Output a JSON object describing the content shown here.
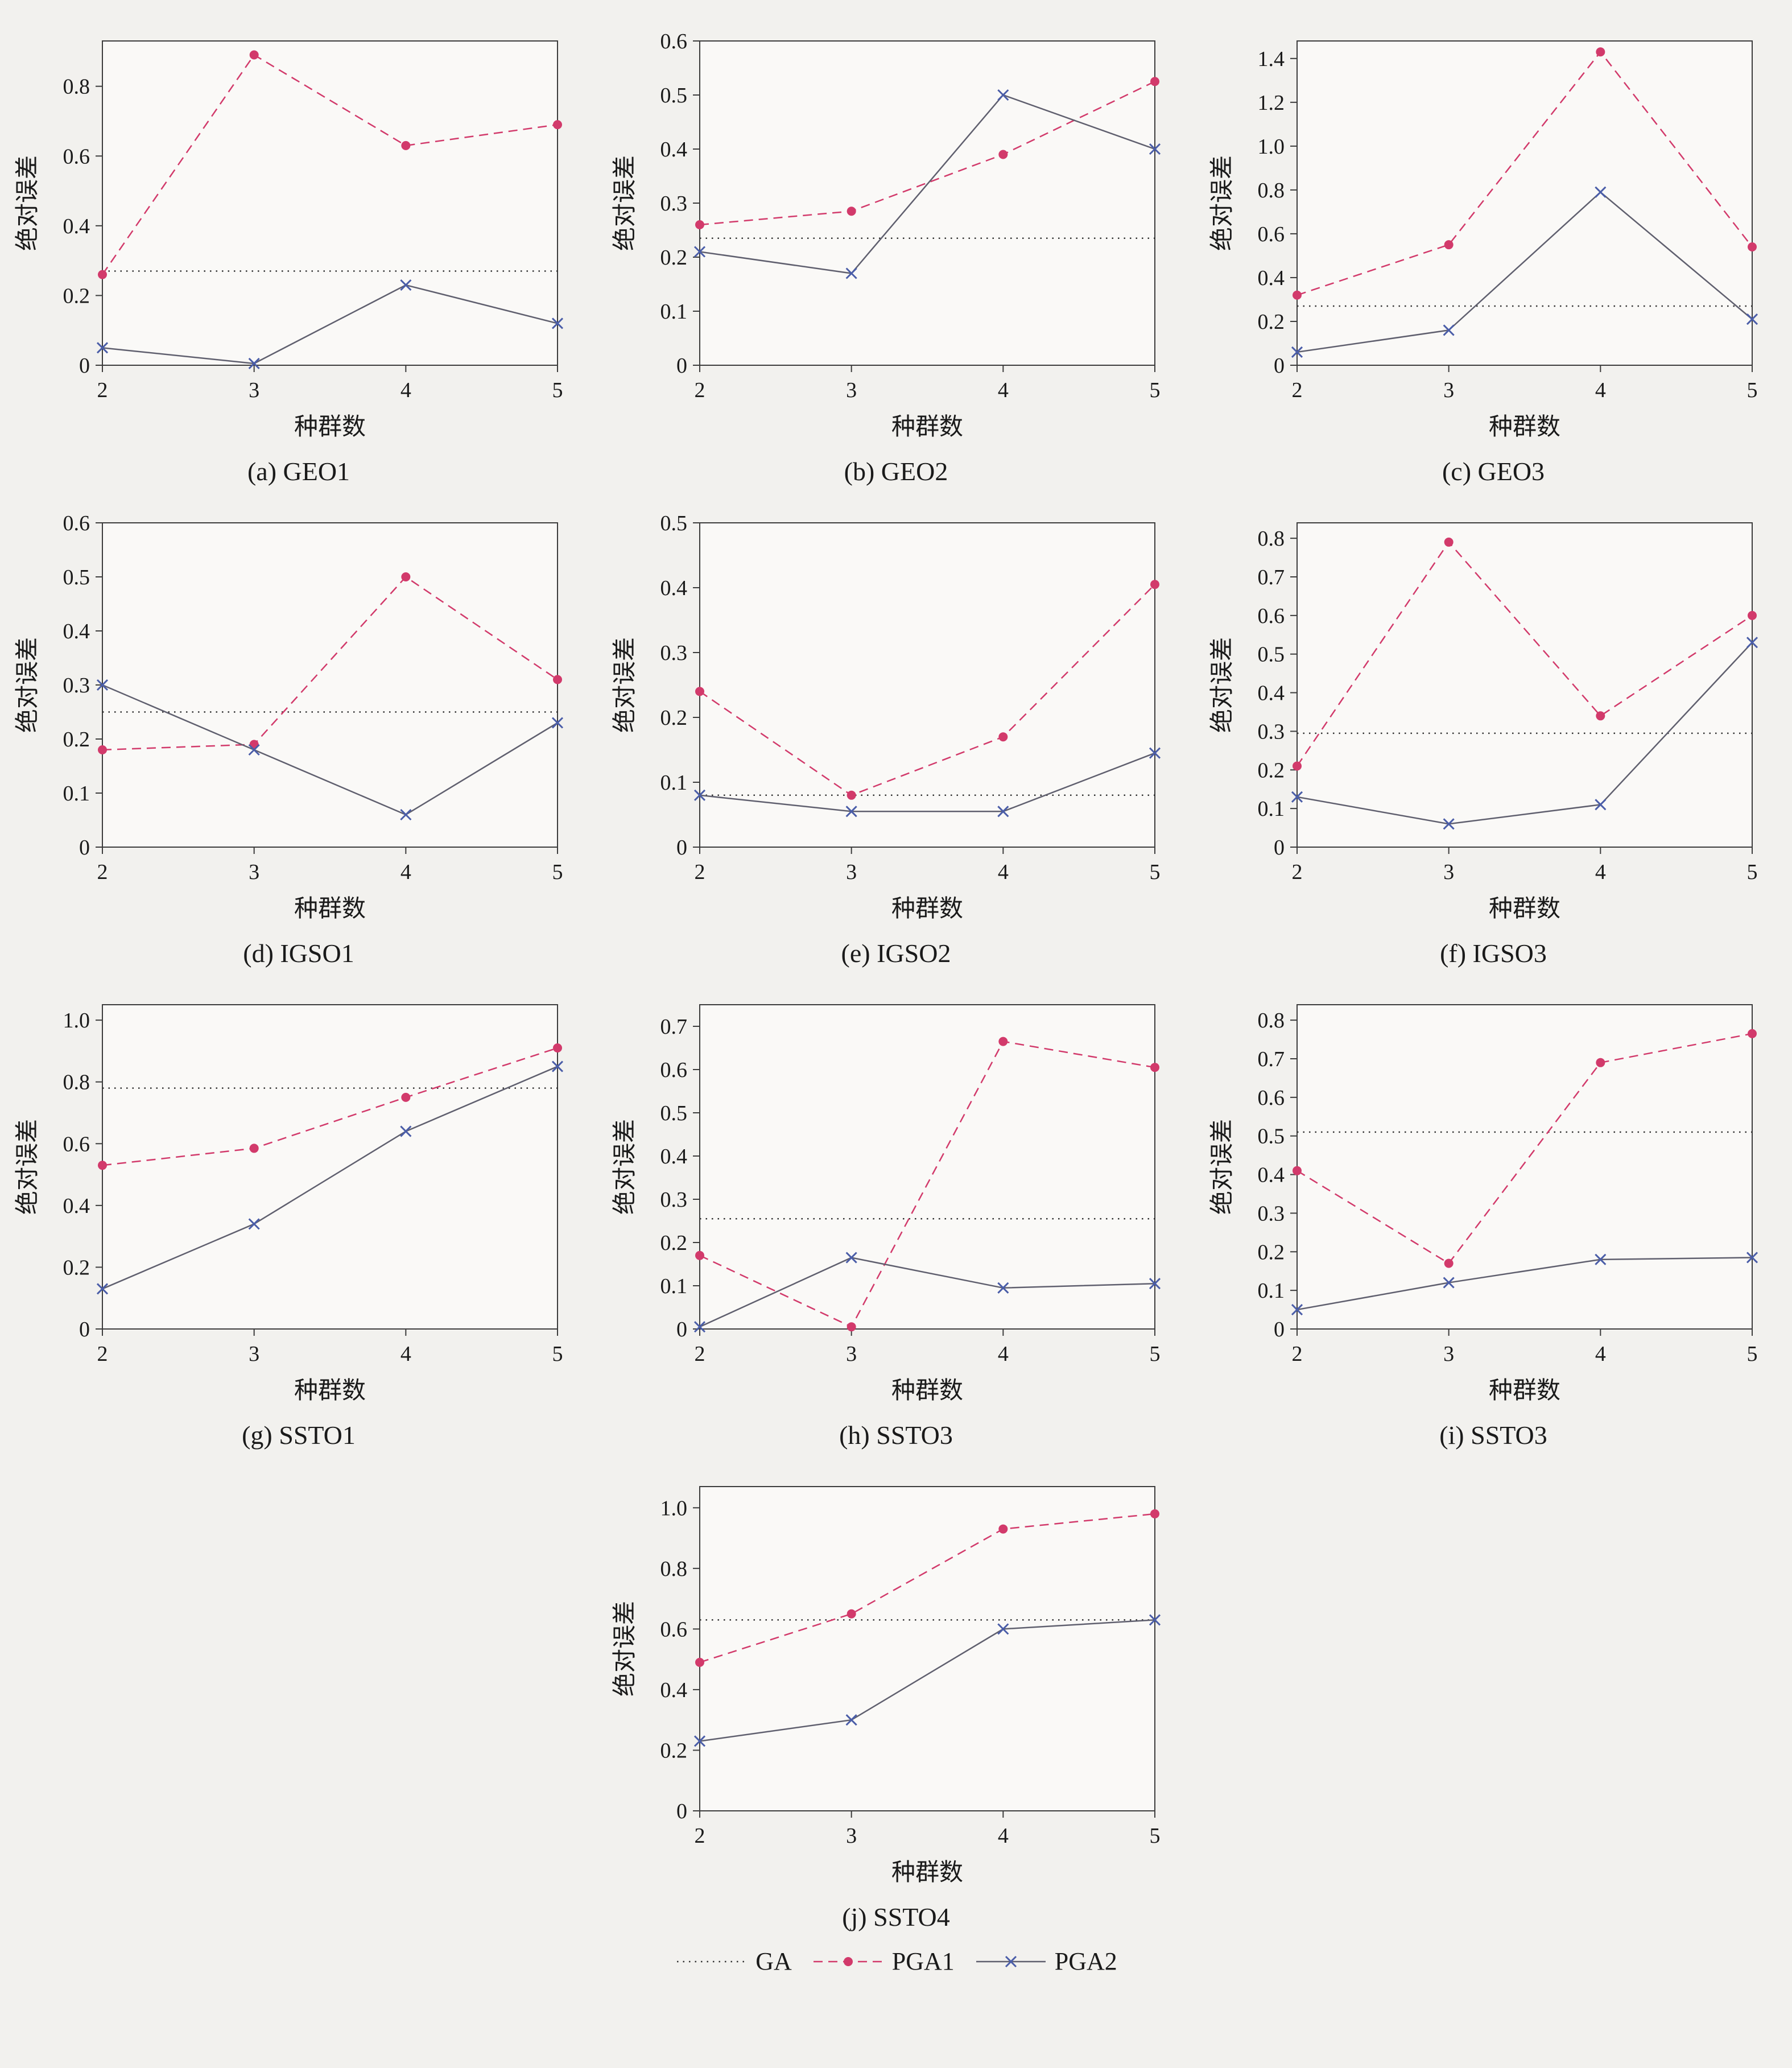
{
  "figure": {
    "background": "#f2f1ee",
    "plot_fill": "#faf9f7",
    "frame_color": "#3c3c3c",
    "xlabel": "种群数",
    "ylabel": "绝对误差",
    "x_ticks": [
      "2",
      "3",
      "4",
      "5"
    ],
    "legend_position": "bottom-center",
    "legend": [
      {
        "name": "GA",
        "style": "dotted",
        "color": "#333333"
      },
      {
        "name": "PGA1",
        "style": "dashed-circle",
        "color": "#d23a6b"
      },
      {
        "name": "PGA2",
        "style": "solid-x",
        "color": "#5f5f6e",
        "marker_color": "#4a5da8"
      }
    ]
  },
  "chart_data": [
    {
      "type": "line",
      "caption": "(a) GEO1",
      "xlabel": "种群数",
      "ylabel": "绝对误差",
      "x": [
        2,
        3,
        4,
        5
      ],
      "ylim": [
        0,
        0.93
      ],
      "yticks": [
        "0",
        "0.2",
        "0.4",
        "0.6",
        "0.8"
      ],
      "series": [
        {
          "name": "GA",
          "values": [
            0.27,
            0.27,
            0.27,
            0.27
          ]
        },
        {
          "name": "PGA1",
          "values": [
            0.26,
            0.89,
            0.63,
            0.69
          ]
        },
        {
          "name": "PGA2",
          "values": [
            0.05,
            0.005,
            0.23,
            0.12
          ]
        }
      ]
    },
    {
      "type": "line",
      "caption": "(b) GEO2",
      "xlabel": "种群数",
      "ylabel": "绝对误差",
      "x": [
        2,
        3,
        4,
        5
      ],
      "ylim": [
        0,
        0.6
      ],
      "yticks": [
        "0",
        "0.1",
        "0.2",
        "0.3",
        "0.4",
        "0.5",
        "0.6"
      ],
      "series": [
        {
          "name": "GA",
          "values": [
            0.235,
            0.235,
            0.235,
            0.235
          ]
        },
        {
          "name": "PGA1",
          "values": [
            0.26,
            0.285,
            0.39,
            0.525
          ]
        },
        {
          "name": "PGA2",
          "values": [
            0.21,
            0.17,
            0.5,
            0.4
          ]
        }
      ]
    },
    {
      "type": "line",
      "caption": "(c) GEO3",
      "xlabel": "种群数",
      "ylabel": "绝对误差",
      "x": [
        2,
        3,
        4,
        5
      ],
      "ylim": [
        0,
        1.48
      ],
      "yticks": [
        "0",
        "0.2",
        "0.4",
        "0.6",
        "0.8",
        "1.0",
        "1.2",
        "1.4"
      ],
      "series": [
        {
          "name": "GA",
          "values": [
            0.27,
            0.27,
            0.27,
            0.27
          ]
        },
        {
          "name": "PGA1",
          "values": [
            0.32,
            0.55,
            1.43,
            0.54
          ]
        },
        {
          "name": "PGA2",
          "values": [
            0.06,
            0.16,
            0.79,
            0.21
          ]
        }
      ]
    },
    {
      "type": "line",
      "caption": "(d) IGSO1",
      "xlabel": "种群数",
      "ylabel": "绝对误差",
      "x": [
        2,
        3,
        4,
        5
      ],
      "ylim": [
        0,
        0.6
      ],
      "yticks": [
        "0",
        "0.1",
        "0.2",
        "0.3",
        "0.4",
        "0.5",
        "0.6"
      ],
      "series": [
        {
          "name": "GA",
          "values": [
            0.25,
            0.25,
            0.25,
            0.25
          ]
        },
        {
          "name": "PGA1",
          "values": [
            0.18,
            0.19,
            0.5,
            0.31
          ]
        },
        {
          "name": "PGA2",
          "values": [
            0.3,
            0.18,
            0.06,
            0.23
          ]
        }
      ]
    },
    {
      "type": "line",
      "caption": "(e) IGSO2",
      "xlabel": "种群数",
      "ylabel": "绝对误差",
      "x": [
        2,
        3,
        4,
        5
      ],
      "ylim": [
        0,
        0.5
      ],
      "yticks": [
        "0",
        "0.1",
        "0.2",
        "0.3",
        "0.4",
        "0.5"
      ],
      "series": [
        {
          "name": "GA",
          "values": [
            0.08,
            0.08,
            0.08,
            0.08
          ]
        },
        {
          "name": "PGA1",
          "values": [
            0.24,
            0.08,
            0.17,
            0.405
          ]
        },
        {
          "name": "PGA2",
          "values": [
            0.08,
            0.055,
            0.055,
            0.145
          ]
        }
      ]
    },
    {
      "type": "line",
      "caption": "(f) IGSO3",
      "xlabel": "种群数",
      "ylabel": "绝对误差",
      "x": [
        2,
        3,
        4,
        5
      ],
      "ylim": [
        0,
        0.84
      ],
      "yticks": [
        "0",
        "0.1",
        "0.2",
        "0.3",
        "0.4",
        "0.5",
        "0.6",
        "0.7",
        "0.8"
      ],
      "series": [
        {
          "name": "GA",
          "values": [
            0.295,
            0.295,
            0.295,
            0.295
          ]
        },
        {
          "name": "PGA1",
          "values": [
            0.21,
            0.79,
            0.34,
            0.6
          ]
        },
        {
          "name": "PGA2",
          "values": [
            0.13,
            0.06,
            0.11,
            0.53
          ]
        }
      ]
    },
    {
      "type": "line",
      "caption": "(g) SSTO1",
      "xlabel": "种群数",
      "ylabel": "绝对误差",
      "x": [
        2,
        3,
        4,
        5
      ],
      "ylim": [
        0,
        1.05
      ],
      "yticks": [
        "0",
        "0.2",
        "0.4",
        "0.6",
        "0.8",
        "1.0"
      ],
      "series": [
        {
          "name": "GA",
          "values": [
            0.78,
            0.78,
            0.78,
            0.78
          ]
        },
        {
          "name": "PGA1",
          "values": [
            0.53,
            0.585,
            0.75,
            0.91
          ]
        },
        {
          "name": "PGA2",
          "values": [
            0.13,
            0.34,
            0.64,
            0.85
          ]
        }
      ]
    },
    {
      "type": "line",
      "caption": "(h) SSTO3",
      "xlabel": "种群数",
      "ylabel": "绝对误差",
      "x": [
        2,
        3,
        4,
        5
      ],
      "ylim": [
        0,
        0.75
      ],
      "yticks": [
        "0",
        "0.1",
        "0.2",
        "0.3",
        "0.4",
        "0.5",
        "0.6",
        "0.7"
      ],
      "series": [
        {
          "name": "GA",
          "values": [
            0.255,
            0.255,
            0.255,
            0.255
          ]
        },
        {
          "name": "PGA1",
          "values": [
            0.17,
            0.005,
            0.665,
            0.605
          ]
        },
        {
          "name": "PGA2",
          "values": [
            0.005,
            0.165,
            0.095,
            0.105
          ]
        }
      ]
    },
    {
      "type": "line",
      "caption": "(i) SSTO3",
      "xlabel": "种群数",
      "ylabel": "绝对误差",
      "x": [
        2,
        3,
        4,
        5
      ],
      "ylim": [
        0,
        0.84
      ],
      "yticks": [
        "0",
        "0.1",
        "0.2",
        "0.3",
        "0.4",
        "0.5",
        "0.6",
        "0.7",
        "0.8"
      ],
      "series": [
        {
          "name": "GA",
          "values": [
            0.51,
            0.51,
            0.51,
            0.51
          ]
        },
        {
          "name": "PGA1",
          "values": [
            0.41,
            0.17,
            0.69,
            0.765
          ]
        },
        {
          "name": "PGA2",
          "values": [
            0.05,
            0.12,
            0.18,
            0.185
          ]
        }
      ]
    },
    {
      "type": "line",
      "caption": "(j) SSTO4",
      "xlabel": "种群数",
      "ylabel": "绝对误差",
      "x": [
        2,
        3,
        4,
        5
      ],
      "ylim": [
        0,
        1.07
      ],
      "yticks": [
        "0",
        "0.2",
        "0.4",
        "0.6",
        "0.8",
        "1.0"
      ],
      "series": [
        {
          "name": "GA",
          "values": [
            0.63,
            0.63,
            0.63,
            0.63
          ]
        },
        {
          "name": "PGA1",
          "values": [
            0.49,
            0.65,
            0.93,
            0.98
          ]
        },
        {
          "name": "PGA2",
          "values": [
            0.23,
            0.3,
            0.6,
            0.63
          ]
        }
      ]
    }
  ]
}
